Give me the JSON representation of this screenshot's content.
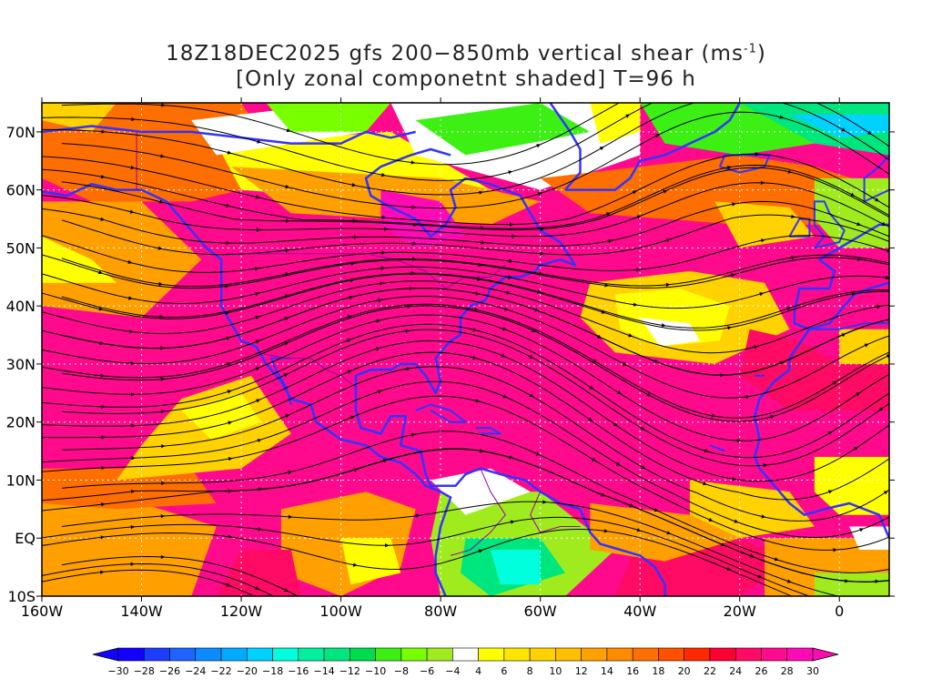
{
  "title": {
    "line1_prefix": "18Z18DEC2025 gfs 200−850mb vertical shear (ms",
    "line1_sup": "-1",
    "line1_suffix": ")",
    "line2": "[Only zonal componetnt shaded] T=96 h"
  },
  "map": {
    "lon_labels": [
      "160W",
      "140W",
      "120W",
      "100W",
      "80W",
      "60W",
      "40W",
      "20W",
      "0"
    ],
    "lat_labels": [
      "70N",
      "60N",
      "50N",
      "40N",
      "30N",
      "20N",
      "10N",
      "EQ",
      "10S"
    ],
    "extent": {
      "lon_min": -160,
      "lon_max": 10,
      "lat_min": -10,
      "lat_max": 75
    },
    "coastline_color": "#3333ff",
    "border_color": "#9900aa",
    "streamline_color": "#000000",
    "grid_style": "dotted white"
  },
  "colorbar": {
    "labels": [
      "-30",
      "-28",
      "-26",
      "-24",
      "-22",
      "-20",
      "-18",
      "-16",
      "-14",
      "-12",
      "-10",
      "-8",
      "-6",
      "-4",
      "4",
      "6",
      "8",
      "10",
      "12",
      "14",
      "16",
      "18",
      "20",
      "22",
      "24",
      "26",
      "28",
      "30"
    ],
    "colors": [
      "#1400ff",
      "#1e3cff",
      "#1e64ff",
      "#0a8cff",
      "#00aaff",
      "#00d2ff",
      "#00ffdc",
      "#00f0a0",
      "#00e67e",
      "#00dc4e",
      "#3cf014",
      "#78ff00",
      "#a0eb1e",
      "#ffffff",
      "#ffff00",
      "#ffe600",
      "#ffd200",
      "#ffbe00",
      "#ffa000",
      "#ff8c00",
      "#ff6e00",
      "#ff5000",
      "#ff2800",
      "#ff0032",
      "#ff0a64",
      "#ff0a8c",
      "#ff0ab4"
    ],
    "left_end_color": "#1400ff",
    "right_end_color": "#ff0ab4"
  }
}
